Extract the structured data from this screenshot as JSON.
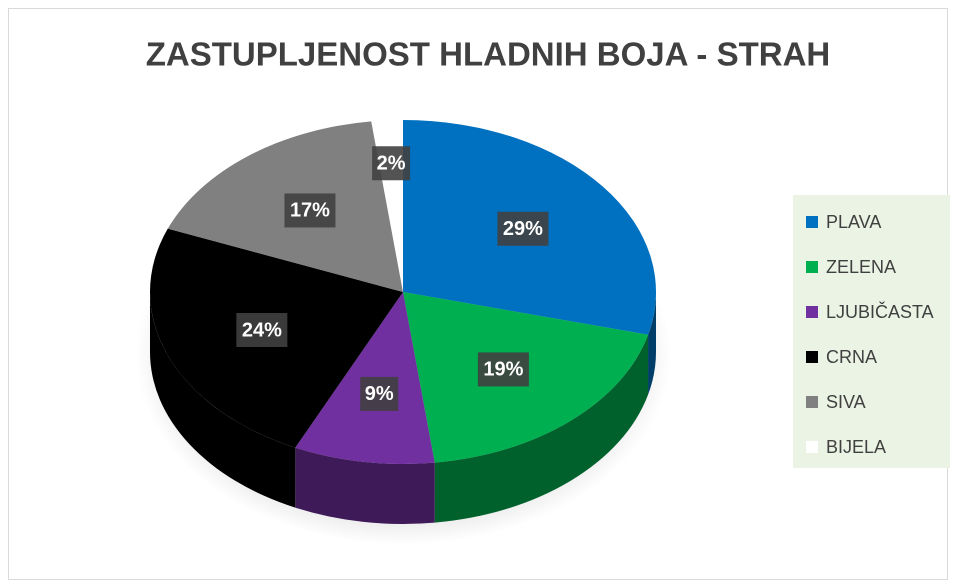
{
  "chart_data": {
    "type": "pie",
    "title": "ZASTUPLJENOST HLADNIH BOJA - STRAH",
    "categories": [
      "PLAVA",
      "ZELENA",
      "LJUBIČASTA",
      "CRNA",
      "SIVA",
      "BIJELA"
    ],
    "values": [
      29,
      19,
      9,
      24,
      17,
      2
    ],
    "value_labels": [
      "29%",
      "19%",
      "9%",
      "24%",
      "17%",
      "2%"
    ],
    "colors": [
      "#0070c0",
      "#00b050",
      "#7030a0",
      "#000000",
      "#808080",
      "#ffffff"
    ],
    "legend": "right"
  }
}
